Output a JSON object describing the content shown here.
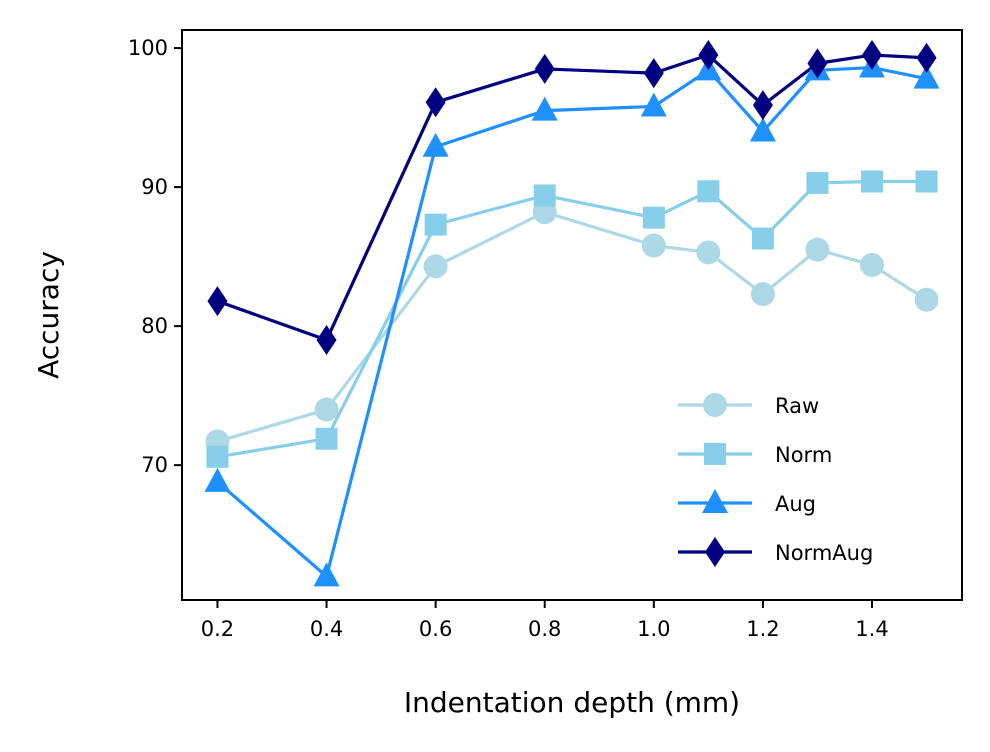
{
  "chart_data": {
    "type": "line",
    "title": "",
    "xlabel": "Indentation depth (mm)",
    "ylabel": "Accuracy",
    "xlim": [
      0.135,
      1.565
    ],
    "ylim": [
      60.3,
      101.3
    ],
    "xticks": [
      0.2,
      0.4,
      0.6,
      0.8,
      1.0,
      1.2,
      1.4
    ],
    "xtick_labels": [
      "0.2",
      "0.4",
      "0.6",
      "0.8",
      "1.0",
      "1.2",
      "1.4"
    ],
    "yticks": [
      70,
      80,
      90,
      100
    ],
    "ytick_labels": [
      "70",
      "80",
      "90",
      "100"
    ],
    "grid": false,
    "legend_position": "lower-right",
    "x": [
      0.2,
      0.4,
      0.6,
      0.8,
      1.0,
      1.1,
      1.2,
      1.3,
      1.4,
      1.5
    ],
    "series": [
      {
        "name": "Raw",
        "color": "#add8e6",
        "marker": "circle",
        "values": [
          71.7,
          74.0,
          84.3,
          88.2,
          85.8,
          85.3,
          82.3,
          85.5,
          84.4,
          81.9
        ]
      },
      {
        "name": "Norm",
        "color": "#87ceeb",
        "marker": "square",
        "values": [
          70.6,
          71.9,
          87.3,
          89.4,
          87.8,
          89.7,
          86.3,
          90.3,
          90.4,
          90.4
        ]
      },
      {
        "name": "Aug",
        "color": "#1e90ff",
        "marker": "triangle",
        "values": [
          68.8,
          62.0,
          92.9,
          95.5,
          95.8,
          98.4,
          94.0,
          98.4,
          98.6,
          97.8
        ]
      },
      {
        "name": "NormAug",
        "color": "#000080",
        "marker": "diamond",
        "values": [
          81.8,
          79.0,
          96.1,
          98.5,
          98.2,
          99.5,
          95.9,
          98.9,
          99.5,
          99.3
        ]
      }
    ]
  }
}
